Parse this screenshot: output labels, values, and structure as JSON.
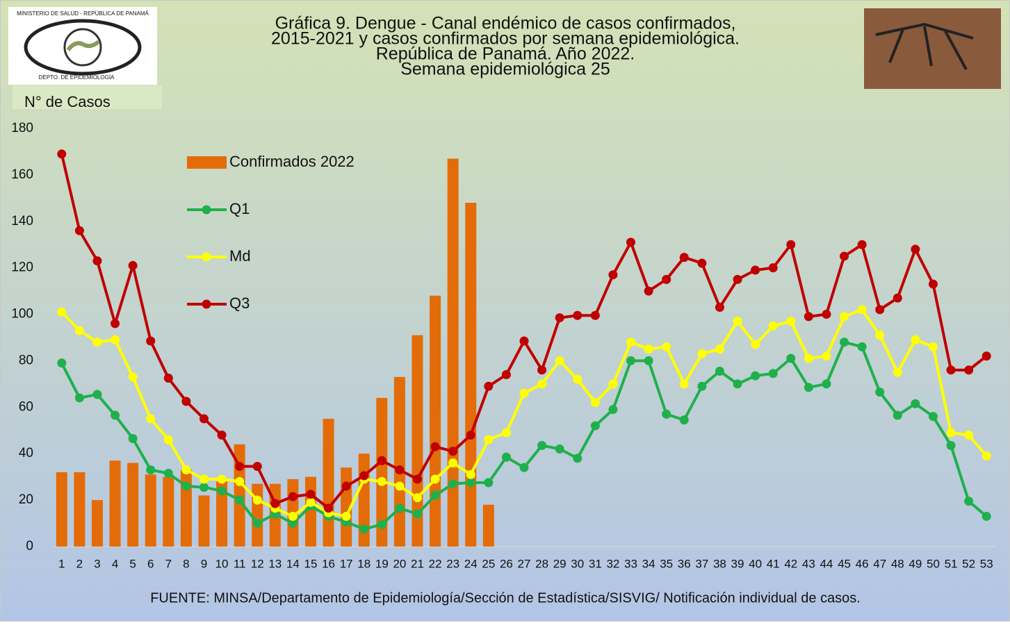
{
  "logo": {
    "top": "MINISTERIO DE SALUD - REPÚBLICA DE PANAMÁ",
    "bottom": "DEPTO. DE EPIDEMIOLOGÍA"
  },
  "chart_data": {
    "type": "combo",
    "title": [
      "Gráfica 9. Dengue - Canal endémico de casos confirmados,",
      "2015-2021 y casos confirmados por semana epidemiológica.",
      "República de Panamá. Año 2022.",
      "Semana epidemiológica 25"
    ],
    "y_label": "N° de Casos",
    "source": "FUENTE: MINSA/Departamento de Epidemiología/Sección de Estadística/SISVIG/ Notificación individual de casos.",
    "categories": [
      "1",
      "2",
      "3",
      "4",
      "5",
      "6",
      "7",
      "8",
      "9",
      "10",
      "11",
      "12",
      "13",
      "14",
      "15",
      "16",
      "17",
      "18",
      "19",
      "20",
      "21",
      "22",
      "23",
      "24",
      "25",
      "26",
      "27",
      "28",
      "29",
      "30",
      "31",
      "32",
      "33",
      "34",
      "35",
      "36",
      "37",
      "38",
      "39",
      "40",
      "41",
      "42",
      "43",
      "44",
      "45",
      "46",
      "47",
      "48",
      "49",
      "50",
      "51",
      "52",
      "53"
    ],
    "ylim": [
      0,
      180
    ],
    "yticks": [
      0,
      20,
      40,
      60,
      80,
      100,
      120,
      140,
      160,
      180
    ],
    "legend": "upper left",
    "series": [
      {
        "name": "Confirmados 2022",
        "type": "bar",
        "color": "#e36c09",
        "values": [
          32,
          32,
          20,
          37,
          36,
          31,
          30,
          33,
          22,
          28,
          44,
          27,
          27,
          29,
          30,
          55,
          34,
          40,
          64,
          73,
          91,
          108,
          167,
          148,
          18,
          null,
          null,
          null,
          null,
          null,
          null,
          null,
          null,
          null,
          null,
          null,
          null,
          null,
          null,
          null,
          null,
          null,
          null,
          null,
          null,
          null,
          null,
          null,
          null,
          null,
          null,
          null,
          null
        ]
      },
      {
        "name": "Q1",
        "type": "line",
        "color": "#1fb04b",
        "values": [
          79,
          64,
          65.5,
          56.5,
          46.5,
          33,
          31.5,
          26,
          25.5,
          24,
          20,
          10,
          14,
          10,
          17.5,
          13,
          10.5,
          7.5,
          9.5,
          16.5,
          14,
          22,
          27,
          27.5,
          27.5,
          38.5,
          34,
          43.5,
          42,
          38,
          52,
          59,
          80,
          80,
          57,
          54.5,
          69,
          75.5,
          70,
          73.5,
          74.5,
          81,
          68.5,
          70,
          88,
          86,
          66.5,
          56.5,
          61.5,
          56,
          43.5,
          19.5,
          13
        ]
      },
      {
        "name": "Md",
        "type": "line",
        "color": "#ffff00",
        "values": [
          101,
          93,
          88,
          89,
          73,
          55,
          46,
          33,
          29,
          29,
          28,
          20,
          16.5,
          13,
          19,
          14.5,
          13,
          29,
          28,
          26,
          21,
          29,
          36,
          31,
          46,
          49,
          66,
          70,
          80,
          72,
          62,
          70,
          88,
          85,
          86,
          70,
          83,
          85,
          97,
          87,
          95,
          97,
          81,
          82,
          99,
          102,
          91,
          75,
          89,
          86,
          49,
          48,
          39
        ]
      },
      {
        "name": "Q3",
        "type": "line",
        "color": "#c00000",
        "values": [
          169,
          136,
          123,
          96,
          121,
          88.5,
          72.5,
          62.5,
          55,
          48,
          34.5,
          34.5,
          18.5,
          21.5,
          22.5,
          16.5,
          26,
          30.5,
          37,
          33,
          29,
          43,
          41,
          48,
          69,
          74,
          88.5,
          76,
          98.5,
          99.5,
          99.5,
          117,
          131,
          110,
          115,
          124.5,
          122,
          103,
          115,
          119,
          120,
          130,
          99,
          100,
          125,
          130,
          102,
          107,
          128,
          113,
          76,
          76,
          82
        ]
      }
    ]
  }
}
